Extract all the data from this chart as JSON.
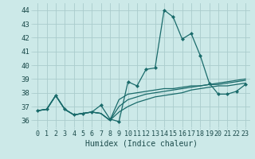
{
  "xlabel": "Humidex (Indice chaleur)",
  "xlim": [
    -0.5,
    23.5
  ],
  "ylim": [
    35.5,
    44.5
  ],
  "yticks": [
    36,
    37,
    38,
    39,
    40,
    41,
    42,
    43,
    44
  ],
  "xticks": [
    0,
    1,
    2,
    3,
    4,
    5,
    6,
    7,
    8,
    9,
    10,
    11,
    12,
    13,
    14,
    15,
    16,
    17,
    18,
    19,
    20,
    21,
    22,
    23
  ],
  "bg_color": "#cce9e8",
  "grid_color": "#aacccc",
  "line_color": "#1a6b6b",
  "series": [
    [
      36.7,
      36.8,
      37.8,
      36.8,
      36.4,
      36.5,
      36.6,
      37.1,
      36.1,
      35.9,
      38.8,
      38.5,
      39.7,
      39.8,
      44.0,
      43.5,
      41.9,
      42.3,
      40.7,
      38.7,
      37.9,
      37.9,
      38.1,
      38.6
    ],
    [
      36.7,
      36.8,
      37.8,
      36.8,
      36.4,
      36.5,
      36.6,
      36.5,
      36.0,
      37.5,
      37.9,
      38.0,
      38.1,
      38.2,
      38.3,
      38.3,
      38.4,
      38.5,
      38.5,
      38.6,
      38.6,
      38.7,
      38.8,
      38.9
    ],
    [
      36.7,
      36.8,
      37.8,
      36.8,
      36.4,
      36.5,
      36.6,
      36.5,
      36.0,
      37.0,
      37.5,
      37.7,
      37.9,
      38.0,
      38.1,
      38.2,
      38.3,
      38.4,
      38.5,
      38.6,
      38.7,
      38.8,
      38.9,
      39.0
    ],
    [
      36.7,
      36.8,
      37.8,
      36.8,
      36.4,
      36.5,
      36.6,
      36.5,
      36.0,
      36.6,
      37.0,
      37.3,
      37.5,
      37.7,
      37.8,
      37.9,
      38.0,
      38.2,
      38.3,
      38.4,
      38.5,
      38.5,
      38.6,
      38.7
    ]
  ],
  "marker": "D",
  "markersize": 2.0,
  "linewidth": 0.9,
  "tickfont": 6.5,
  "xlabelfont": 7.0
}
